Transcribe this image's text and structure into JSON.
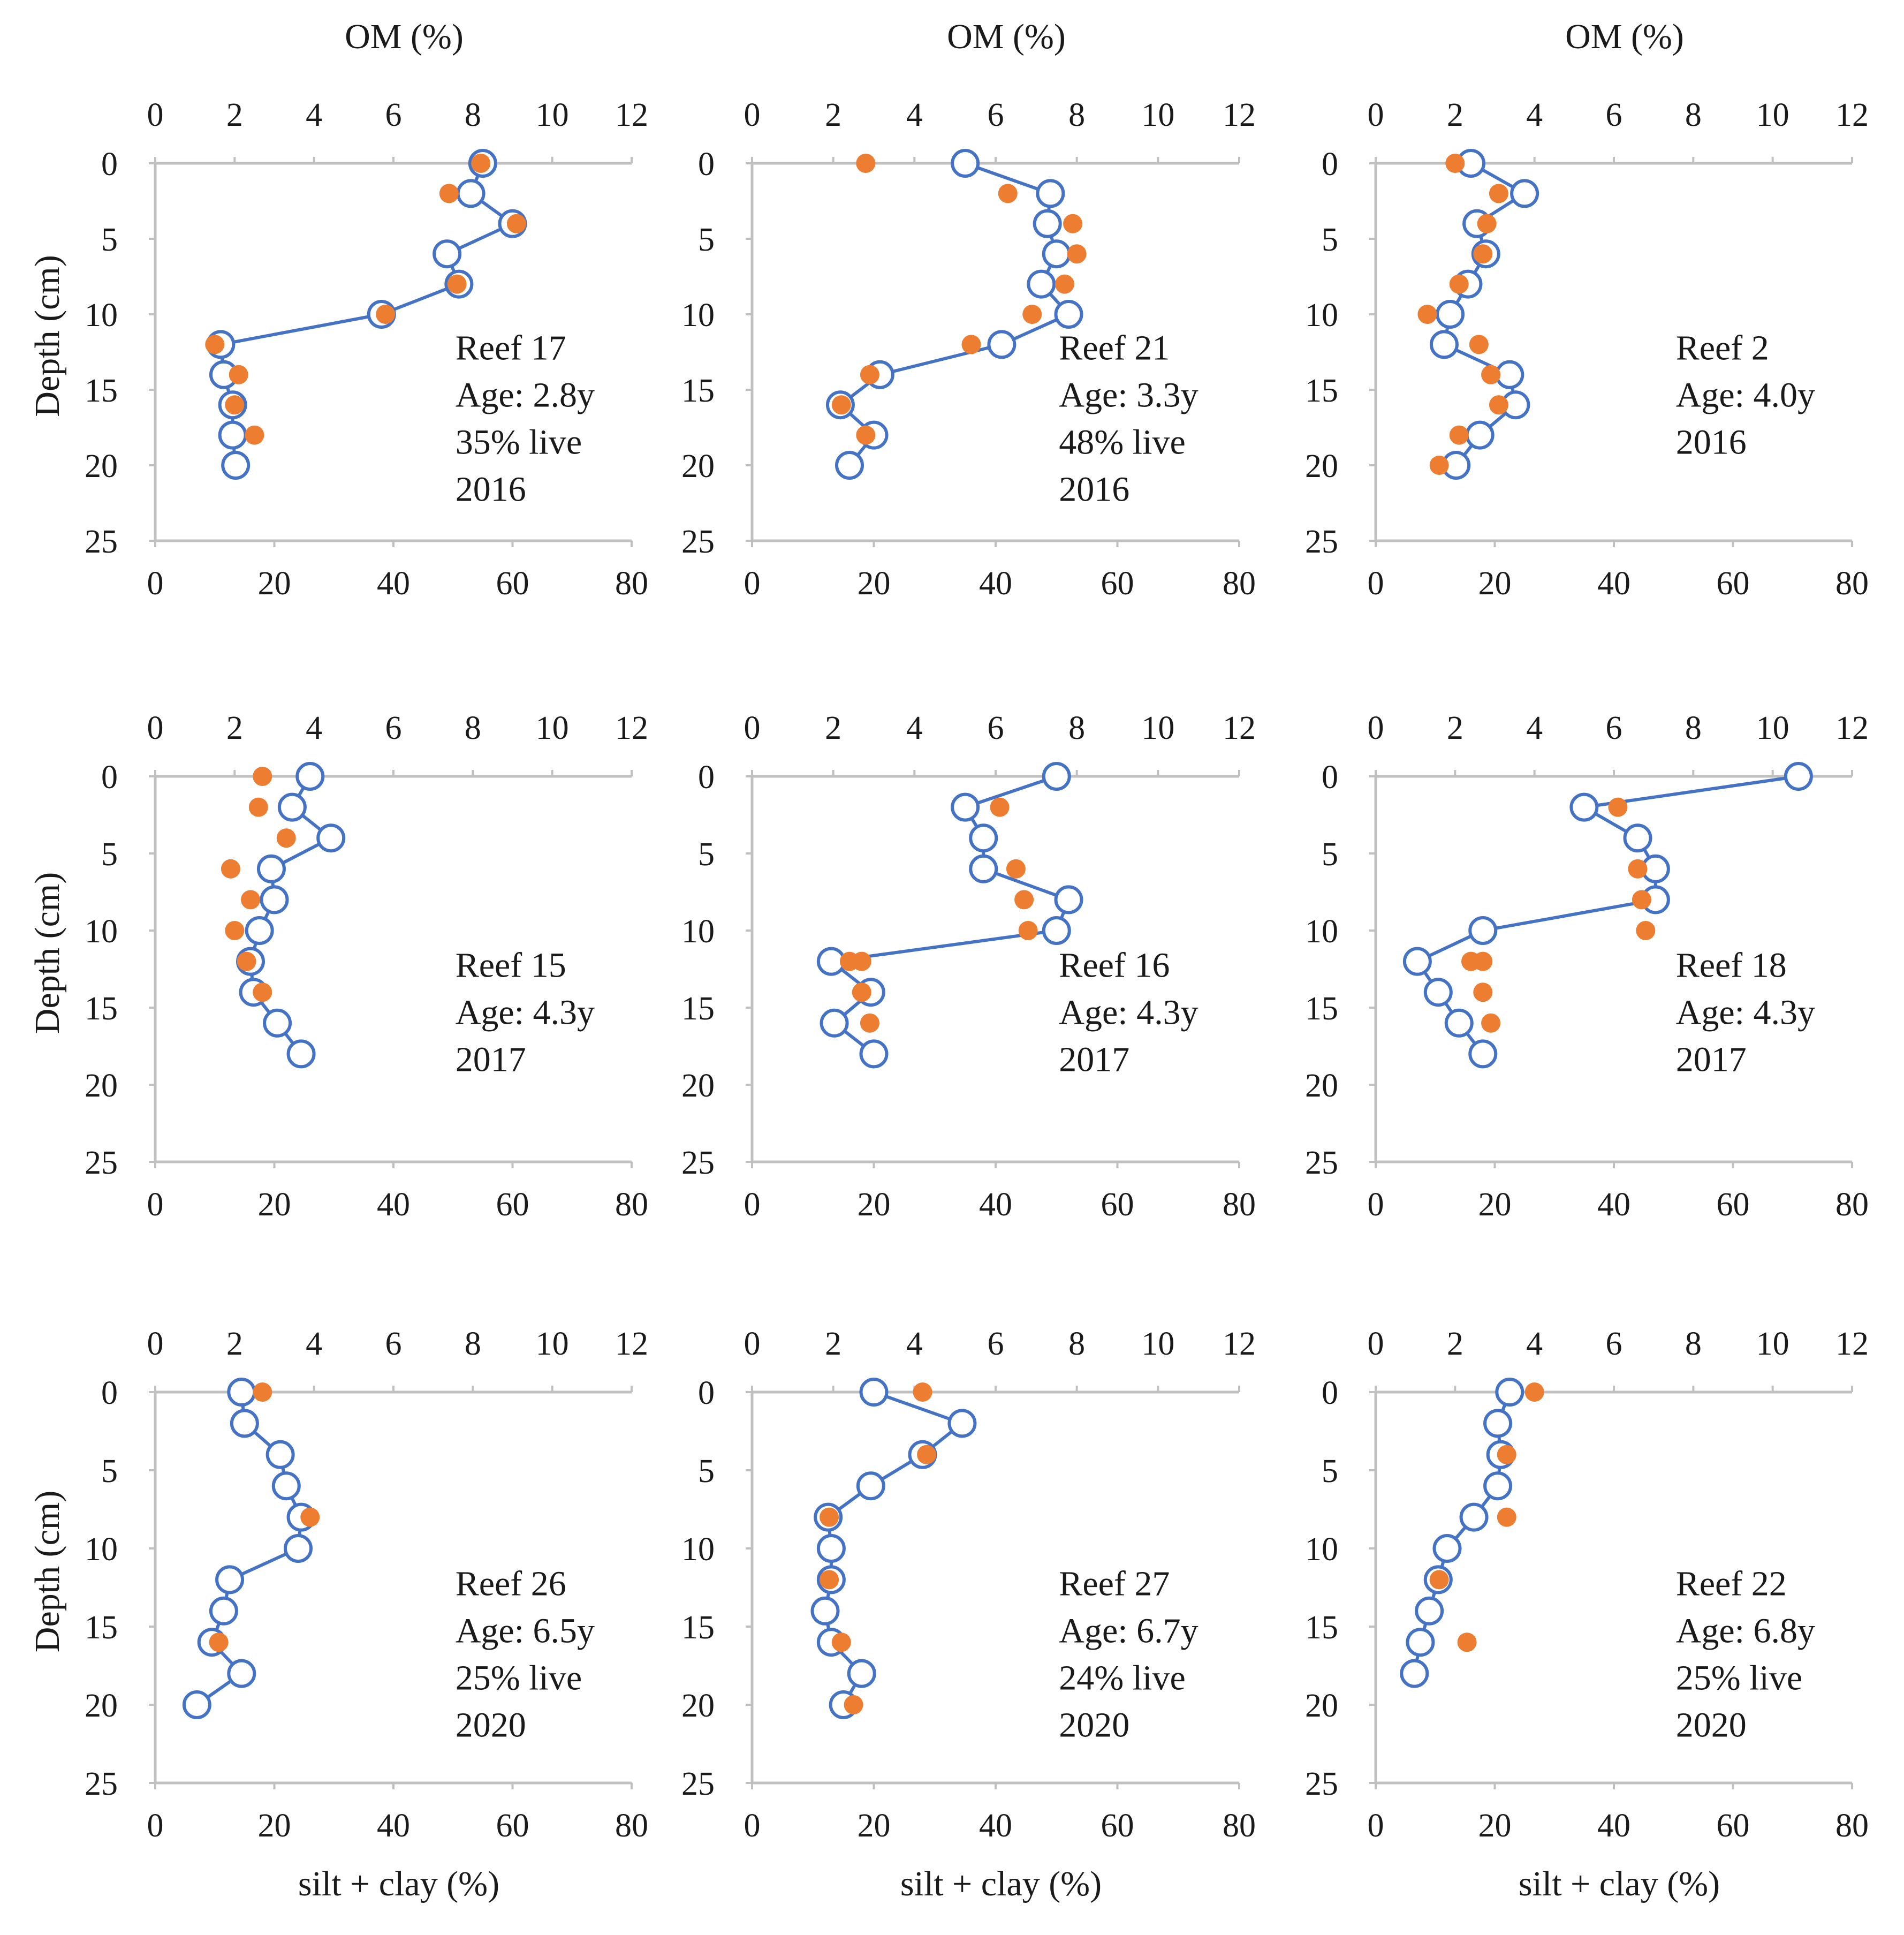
{
  "figure": {
    "shared_depth_label": "Depth (cm)",
    "shared_om_label": "OM (%)",
    "shared_silt_label": "silt + clay (%)"
  },
  "colors": {
    "om_points": "#ED7D31",
    "silt_clay_line": "#4472C4",
    "axis": "#BFBFBF"
  },
  "chart_data": [
    {
      "type": "scatter",
      "panel": "Reef 17",
      "top_axis_title": "OM (%)",
      "bottom_axis_title": "",
      "left_axis_title": "Depth (cm)",
      "om_range": [
        0,
        12
      ],
      "om_ticks": [
        "0",
        "2",
        "4",
        "6",
        "8",
        "10",
        "12"
      ],
      "silt_range": [
        0,
        80
      ],
      "silt_ticks": [
        "0",
        "20",
        "40",
        "60",
        "80"
      ],
      "depth_range": [
        0,
        25
      ],
      "depth_ticks": [
        "0",
        "5",
        "10",
        "15",
        "20",
        "25"
      ],
      "annotation": [
        "Reef 17",
        "Age: 2.8y",
        "35% live",
        "2016"
      ],
      "series": [
        {
          "name": "OM (%)",
          "marker": "filled-circle",
          "depth": [
            0,
            2,
            4,
            6,
            8,
            10,
            12,
            14,
            16,
            18,
            20
          ],
          "om": [
            8.2,
            7.4,
            9.1,
            null,
            7.6,
            5.8,
            1.5,
            2.1,
            2.0,
            2.5,
            null
          ]
        },
        {
          "name": "silt + clay (%)",
          "marker": "open-circle-line",
          "depth": [
            0,
            2,
            4,
            6,
            8,
            10,
            12,
            14,
            16,
            18,
            20
          ],
          "silt_clay": [
            55,
            53,
            60,
            49,
            51,
            38,
            11,
            11.5,
            13,
            13,
            13.5
          ]
        }
      ]
    },
    {
      "type": "scatter",
      "panel": "Reef 21",
      "top_axis_title": "OM (%)",
      "bottom_axis_title": "",
      "left_axis_title": "",
      "om_range": [
        0,
        12
      ],
      "om_ticks": [
        "0",
        "2",
        "4",
        "6",
        "8",
        "10",
        "12"
      ],
      "silt_range": [
        0,
        80
      ],
      "silt_ticks": [
        "0",
        "20",
        "40",
        "60",
        "80"
      ],
      "depth_range": [
        0,
        25
      ],
      "depth_ticks": [
        "0",
        "5",
        "10",
        "15",
        "20",
        "25"
      ],
      "annotation": [
        "Reef 21",
        "Age: 3.3y",
        "48% live",
        "2016"
      ],
      "series": [
        {
          "name": "OM (%)",
          "marker": "filled-circle",
          "depth": [
            0,
            2,
            4,
            6,
            8,
            10,
            12,
            14,
            16,
            18
          ],
          "om": [
            2.8,
            6.3,
            7.9,
            8.0,
            7.7,
            6.9,
            5.4,
            2.9,
            2.2,
            2.8
          ]
        },
        {
          "name": "silt + clay (%)",
          "marker": "open-circle-line",
          "depth": [
            0,
            2,
            4,
            6,
            8,
            10,
            12,
            14,
            16,
            18,
            20
          ],
          "silt_clay": [
            35,
            49,
            48.5,
            50,
            47.5,
            52,
            41,
            21,
            14.5,
            20,
            16
          ]
        }
      ]
    },
    {
      "type": "scatter",
      "panel": "Reef 2",
      "top_axis_title": "OM (%)",
      "bottom_axis_title": "",
      "left_axis_title": "",
      "om_range": [
        0,
        12
      ],
      "om_ticks": [
        "0",
        "2",
        "4",
        "6",
        "8",
        "10",
        "12"
      ],
      "silt_range": [
        0,
        80
      ],
      "silt_ticks": [
        "0",
        "20",
        "40",
        "60",
        "80"
      ],
      "depth_range": [
        0,
        25
      ],
      "depth_ticks": [
        "0",
        "5",
        "10",
        "15",
        "20",
        "25"
      ],
      "annotation": [
        "Reef 2",
        "Age: 4.0y",
        "2016"
      ],
      "series": [
        {
          "name": "OM (%)",
          "marker": "filled-circle",
          "depth": [
            0,
            2,
            4,
            6,
            8,
            10,
            12,
            14,
            16,
            18,
            20
          ],
          "om": [
            2.0,
            3.1,
            2.8,
            2.7,
            2.1,
            1.3,
            2.6,
            2.9,
            3.1,
            2.1,
            1.6
          ]
        },
        {
          "name": "silt + clay (%)",
          "marker": "open-circle-line",
          "depth": [
            0,
            2,
            4,
            6,
            8,
            10,
            12,
            14,
            16,
            18,
            20
          ],
          "silt_clay": [
            16,
            25,
            17,
            18.5,
            15.5,
            12.5,
            11.5,
            22.5,
            23.5,
            17.5,
            13.5
          ]
        }
      ]
    },
    {
      "type": "scatter",
      "panel": "Reef 15",
      "top_axis_title": "",
      "bottom_axis_title": "",
      "left_axis_title": "Depth (cm)",
      "om_range": [
        0,
        12
      ],
      "om_ticks": [
        "0",
        "2",
        "4",
        "6",
        "8",
        "10",
        "12"
      ],
      "silt_range": [
        0,
        80
      ],
      "silt_ticks": [
        "0",
        "20",
        "40",
        "60",
        "80"
      ],
      "depth_range": [
        0,
        25
      ],
      "depth_ticks": [
        "0",
        "5",
        "10",
        "15",
        "20",
        "25"
      ],
      "annotation": [
        "Reef 15",
        "Age: 4.3y",
        "2017"
      ],
      "series": [
        {
          "name": "OM (%)",
          "marker": "filled-circle",
          "depth": [
            0,
            2,
            4,
            6,
            8,
            10,
            12,
            14
          ],
          "om": [
            2.7,
            2.6,
            3.3,
            1.9,
            2.4,
            2.0,
            2.3,
            2.7
          ]
        },
        {
          "name": "silt + clay (%)",
          "marker": "open-circle-line",
          "depth": [
            0,
            2,
            4,
            6,
            8,
            10,
            12,
            14,
            16,
            18
          ],
          "silt_clay": [
            26,
            23,
            29.5,
            19.5,
            20,
            17.5,
            16,
            16.5,
            20.5,
            24.5
          ]
        }
      ]
    },
    {
      "type": "scatter",
      "panel": "Reef 16",
      "top_axis_title": "",
      "bottom_axis_title": "",
      "left_axis_title": "",
      "om_range": [
        0,
        12
      ],
      "om_ticks": [
        "0",
        "2",
        "4",
        "6",
        "8",
        "10",
        "12"
      ],
      "silt_range": [
        0,
        80
      ],
      "silt_ticks": [
        "0",
        "20",
        "40",
        "60",
        "80"
      ],
      "depth_range": [
        0,
        25
      ],
      "depth_ticks": [
        "0",
        "5",
        "10",
        "15",
        "20",
        "25"
      ],
      "annotation": [
        "Reef 16",
        "Age: 4.3y",
        "2017"
      ],
      "series": [
        {
          "name": "OM (%)",
          "marker": "filled-circle",
          "depth": [
            2,
            6,
            8,
            10,
            12,
            12,
            14,
            16
          ],
          "om": [
            6.1,
            6.5,
            6.7,
            6.8,
            2.4,
            2.7,
            2.7,
            2.9
          ]
        },
        {
          "name": "silt + clay (%)",
          "marker": "open-circle-line",
          "depth": [
            0,
            2,
            4,
            6,
            8,
            10,
            12,
            14,
            16,
            18
          ],
          "silt_clay": [
            50,
            35,
            38,
            38,
            52,
            50,
            13,
            19.5,
            13.5,
            20
          ]
        }
      ]
    },
    {
      "type": "scatter",
      "panel": "Reef 18",
      "top_axis_title": "",
      "bottom_axis_title": "",
      "left_axis_title": "",
      "om_range": [
        0,
        12
      ],
      "om_ticks": [
        "0",
        "2",
        "4",
        "6",
        "8",
        "10",
        "12"
      ],
      "silt_range": [
        0,
        80
      ],
      "silt_ticks": [
        "0",
        "20",
        "40",
        "60",
        "80"
      ],
      "depth_range": [
        0,
        25
      ],
      "depth_ticks": [
        "0",
        "5",
        "10",
        "15",
        "20",
        "25"
      ],
      "annotation": [
        "Reef 18",
        "Age: 4.3y",
        "2017"
      ],
      "series": [
        {
          "name": "OM (%)",
          "marker": "filled-circle",
          "depth": [
            2,
            6,
            8,
            10,
            12,
            12,
            14,
            16
          ],
          "om": [
            6.1,
            6.6,
            6.7,
            6.8,
            2.4,
            2.7,
            2.7,
            2.9
          ]
        },
        {
          "name": "silt + clay (%)",
          "marker": "open-circle-line",
          "depth": [
            0,
            2,
            4,
            6,
            8,
            10,
            12,
            14,
            16,
            18
          ],
          "silt_clay": [
            71,
            35,
            44,
            47,
            47,
            18,
            7,
            10.5,
            14,
            18
          ]
        }
      ]
    },
    {
      "type": "scatter",
      "panel": "Reef 26",
      "top_axis_title": "",
      "bottom_axis_title": "silt + clay (%)",
      "left_axis_title": "Depth (cm)",
      "om_range": [
        0,
        12
      ],
      "om_ticks": [
        "0",
        "2",
        "4",
        "6",
        "8",
        "10",
        "12"
      ],
      "silt_range": [
        0,
        80
      ],
      "silt_ticks": [
        "0",
        "20",
        "40",
        "60",
        "80"
      ],
      "depth_range": [
        0,
        25
      ],
      "depth_ticks": [
        "0",
        "5",
        "10",
        "15",
        "20",
        "25"
      ],
      "annotation": [
        "Reef 26",
        "Age: 6.5y",
        "25% live",
        "2020"
      ],
      "series": [
        {
          "name": "OM (%)",
          "marker": "filled-circle",
          "depth": [
            0,
            8,
            16
          ],
          "om": [
            2.7,
            3.9,
            1.6
          ]
        },
        {
          "name": "silt + clay (%)",
          "marker": "open-circle-line",
          "depth": [
            0,
            2,
            4,
            6,
            8,
            10,
            12,
            14,
            16,
            18,
            20
          ],
          "silt_clay": [
            14.5,
            15,
            21,
            22,
            24.5,
            24,
            12.5,
            11.5,
            9.5,
            14.5,
            7
          ]
        }
      ]
    },
    {
      "type": "scatter",
      "panel": "Reef 27",
      "top_axis_title": "",
      "bottom_axis_title": "silt + clay (%)",
      "left_axis_title": "",
      "om_range": [
        0,
        12
      ],
      "om_ticks": [
        "0",
        "2",
        "4",
        "6",
        "8",
        "10",
        "12"
      ],
      "silt_range": [
        0,
        80
      ],
      "silt_ticks": [
        "0",
        "20",
        "40",
        "60",
        "80"
      ],
      "depth_range": [
        0,
        25
      ],
      "depth_ticks": [
        "0",
        "5",
        "10",
        "15",
        "20",
        "25"
      ],
      "annotation": [
        "Reef 27",
        "Age: 6.7y",
        "24% live",
        "2020"
      ],
      "series": [
        {
          "name": "OM (%)",
          "marker": "filled-circle",
          "depth": [
            0,
            4,
            8,
            12,
            16,
            20
          ],
          "om": [
            4.2,
            4.3,
            1.9,
            1.9,
            2.2,
            2.5
          ]
        },
        {
          "name": "silt + clay (%)",
          "marker": "open-circle-line",
          "depth": [
            0,
            2,
            4,
            6,
            8,
            10,
            12,
            14,
            16,
            18,
            20
          ],
          "silt_clay": [
            20,
            34.5,
            28,
            19.5,
            12.5,
            13,
            13,
            12,
            13,
            18,
            15
          ]
        }
      ]
    },
    {
      "type": "scatter",
      "panel": "Reef 22",
      "top_axis_title": "",
      "bottom_axis_title": "silt + clay (%)",
      "left_axis_title": "",
      "om_range": [
        0,
        12
      ],
      "om_ticks": [
        "0",
        "2",
        "4",
        "6",
        "8",
        "10",
        "12"
      ],
      "silt_range": [
        0,
        80
      ],
      "silt_ticks": [
        "0",
        "20",
        "40",
        "60",
        "80"
      ],
      "depth_range": [
        0,
        25
      ],
      "depth_ticks": [
        "0",
        "5",
        "10",
        "15",
        "20",
        "25"
      ],
      "annotation": [
        "Reef 22",
        "Age: 6.8y",
        "25% live",
        "2020"
      ],
      "series": [
        {
          "name": "OM (%)",
          "marker": "filled-circle",
          "depth": [
            0,
            4,
            8,
            12,
            16
          ],
          "om": [
            4.0,
            3.3,
            3.3,
            1.6,
            2.3
          ]
        },
        {
          "name": "silt + clay (%)",
          "marker": "open-circle-line",
          "depth": [
            0,
            2,
            4,
            6,
            8,
            10,
            12,
            14,
            16,
            18
          ],
          "silt_clay": [
            22.5,
            20.5,
            21,
            20.5,
            16.5,
            12,
            10.5,
            9,
            7.5,
            6.5
          ]
        }
      ]
    }
  ]
}
